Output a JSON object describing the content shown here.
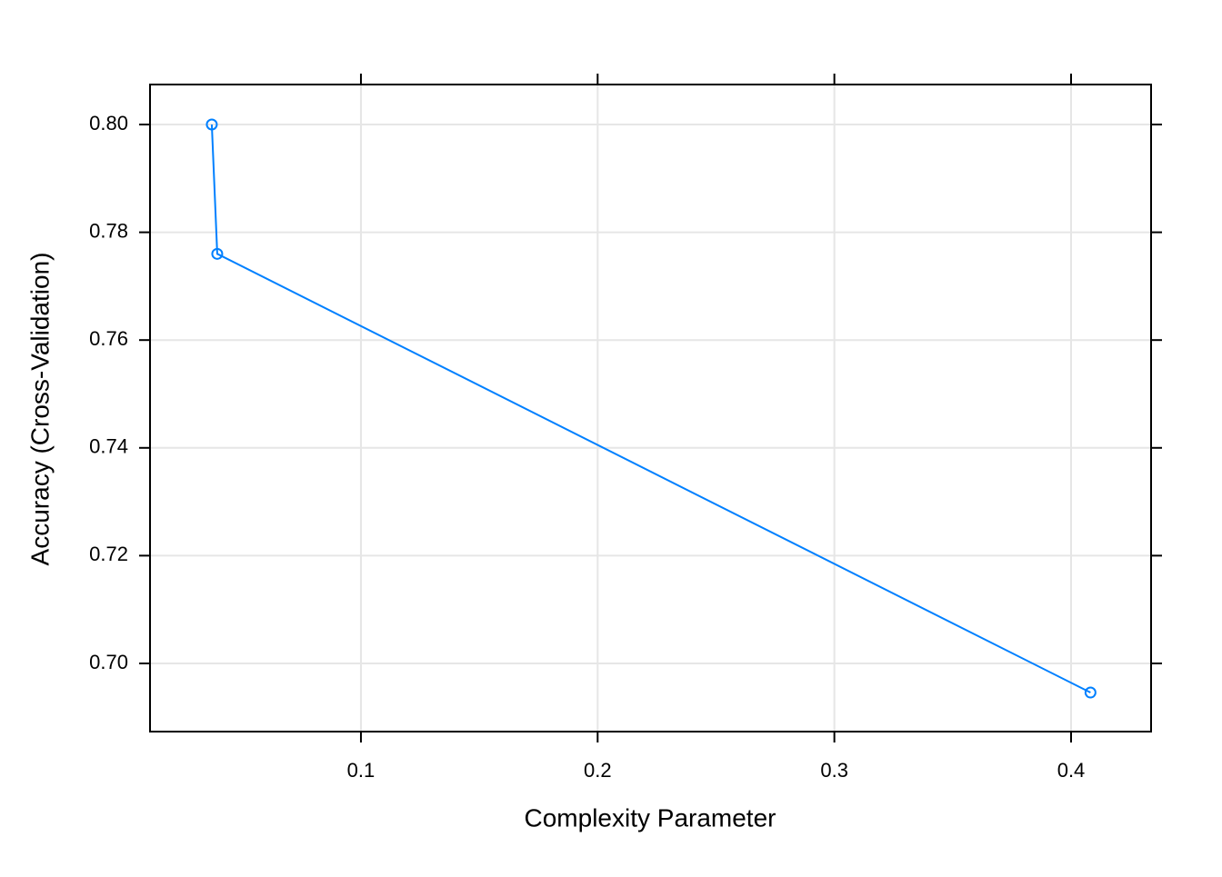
{
  "chart_data": {
    "type": "line",
    "xlabel": "Complexity Parameter",
    "ylabel": "Accuracy (Cross-Validation)",
    "x": [
      0.037,
      0.0393,
      0.4082
    ],
    "series": [
      {
        "color": "#0080ff",
        "values": [
          0.8,
          0.776,
          0.6946
        ]
      }
    ],
    "xlim": [
      0.0109,
      0.4338
    ],
    "ylim": [
      0.68735,
      0.80742
    ],
    "xticks": [
      0.1,
      0.2,
      0.3,
      0.4
    ],
    "yticks": [
      {
        "value": 0.7,
        "label": "0.70"
      },
      0.72,
      0.74,
      0.76,
      0.78,
      {
        "value": 0.8,
        "label": "0.80"
      }
    ],
    "grid": true,
    "markers": "circle"
  }
}
